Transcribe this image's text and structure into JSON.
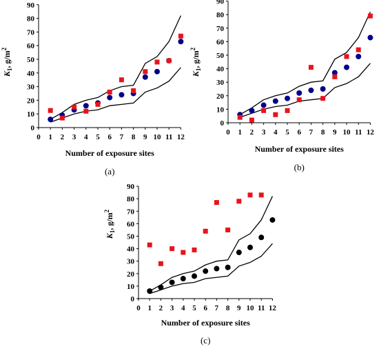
{
  "chart_data": [
    {
      "type": "scatter",
      "panel_label": "(a)",
      "xlabel": "Number of exposure sites",
      "ylabel": "K",
      "ylabel_sub": "1",
      "ylabel_unit": ", g/m",
      "ylabel_sup": "2",
      "xlim": [
        0,
        12
      ],
      "ylim": [
        0,
        90
      ],
      "xticks": [
        "0",
        "1",
        "2",
        "3",
        "4",
        "5",
        "6",
        "7",
        "8",
        "9",
        "10",
        "11",
        "12"
      ],
      "yticks": [
        "0",
        "10",
        "20",
        "30",
        "40",
        "50",
        "60",
        "70",
        "80",
        "90"
      ],
      "x": [
        1,
        2,
        3,
        4,
        5,
        6,
        7,
        8,
        9,
        10,
        11,
        12
      ],
      "series": [
        {
          "values": [
            6,
            9,
            13,
            16,
            18,
            22,
            24,
            25,
            37,
            41,
            49,
            63
          ],
          "color": "#00008b",
          "marker": "circle"
        },
        {
          "values": [
            12.5,
            7,
            15,
            12,
            17,
            26,
            35,
            27,
            41,
            48,
            49,
            67
          ],
          "color": "#e8141b",
          "marker": "square"
        }
      ],
      "band_upper": [
        6,
        11,
        17,
        20,
        22,
        27,
        30,
        31,
        47,
        52,
        63,
        82
      ],
      "band_lower": [
        4,
        7,
        10,
        12,
        13,
        16,
        17,
        18,
        26,
        29,
        34,
        44
      ]
    },
    {
      "type": "scatter",
      "panel_label": "(b)",
      "xlabel": "Number of exposure sites",
      "ylabel": "K",
      "ylabel_sub": "1",
      "ylabel_unit": ", g/m",
      "ylabel_sup": "2",
      "xlim": [
        0,
        12
      ],
      "ylim": [
        0,
        90
      ],
      "xticks": [
        "0",
        "1",
        "2",
        "3",
        "4",
        "5",
        "6",
        "7",
        "8",
        "9",
        "10",
        "11",
        "12"
      ],
      "yticks": [
        "0",
        "10",
        "20",
        "30",
        "40",
        "50",
        "60",
        "70",
        "80",
        "90"
      ],
      "x": [
        1,
        2,
        3,
        4,
        5,
        6,
        7,
        8,
        9,
        10,
        11,
        12
      ],
      "series": [
        {
          "values": [
            6,
            9,
            13,
            16,
            18,
            22,
            24,
            25,
            37,
            41,
            49,
            63
          ],
          "color": "#00008b",
          "marker": "circle"
        },
        {
          "values": [
            4,
            2,
            9,
            6,
            9,
            17,
            41,
            18,
            34,
            49,
            54,
            79
          ],
          "color": "#e8141b",
          "marker": "square"
        }
      ],
      "band_upper": [
        6,
        11,
        17,
        20,
        22,
        27,
        30,
        31,
        47,
        52,
        63,
        82
      ],
      "band_lower": [
        4,
        7,
        10,
        12,
        13,
        16,
        17,
        18,
        26,
        29,
        34,
        44
      ]
    },
    {
      "type": "scatter",
      "panel_label": "(c)",
      "xlabel": "Number of exposure sites",
      "ylabel": "K",
      "ylabel_sub": "1",
      "ylabel_unit": ", g/m",
      "ylabel_sup": "2",
      "xlim": [
        0,
        12
      ],
      "ylim": [
        0,
        90
      ],
      "xticks": [
        "0",
        "1",
        "2",
        "3",
        "4",
        "5",
        "6",
        "7",
        "8",
        "9",
        "10",
        "11",
        "12"
      ],
      "yticks": [
        "0",
        "10",
        "20",
        "30",
        "40",
        "50",
        "60",
        "70",
        "80",
        "90"
      ],
      "x": [
        1,
        2,
        3,
        4,
        5,
        6,
        7,
        8,
        9,
        10,
        11,
        12
      ],
      "series": [
        {
          "values": [
            6,
            9,
            13,
            16,
            18,
            22,
            24,
            25,
            37,
            41,
            49,
            63
          ],
          "color": "#000000",
          "marker": "circle"
        },
        {
          "values": [
            43,
            28,
            40,
            37,
            39,
            54,
            77,
            55,
            78,
            83,
            83,
            null
          ],
          "color": "#e8141b",
          "marker": "square"
        }
      ],
      "band_upper": [
        6,
        11,
        17,
        20,
        22,
        27,
        30,
        31,
        47,
        52,
        63,
        82
      ],
      "band_lower": [
        4,
        7,
        10,
        12,
        13,
        16,
        17,
        18,
        26,
        29,
        34,
        44
      ]
    }
  ]
}
